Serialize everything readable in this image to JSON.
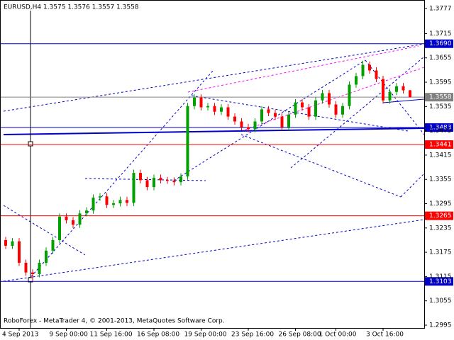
{
  "chart_data": {
    "type": "candlestick",
    "title": "EURUSD,H4  1.3575 1.3576 1.3557 1.3558",
    "footnote": "RoboForex - MetaTrader 4, © 2001-2013, MetaQuotes Software Corp.",
    "categories": [
      null,
      null,
      "4 Sep 2013",
      null,
      null,
      null,
      null,
      null,
      null,
      "9 Sep 00:00",
      null,
      null,
      null,
      null,
      null,
      "11 Sep 16:00",
      null,
      null,
      null,
      null,
      null,
      null,
      "16 Sep 08:00",
      null,
      null,
      null,
      null,
      null,
      null,
      "19 Sep 00:00",
      null,
      null,
      null,
      null,
      null,
      null,
      "23 Sep 16:00",
      null,
      null,
      null,
      null,
      null,
      null,
      "26 Sep 08:00",
      null,
      null,
      null,
      null,
      null,
      "1 Oct 00:00",
      null,
      null,
      null,
      null,
      null,
      null,
      "3 Oct 16:00",
      null,
      null,
      null,
      null
    ],
    "open": [
      1.3205,
      1.3191,
      1.3202,
      1.3149,
      1.3125,
      1.3121,
      1.3149,
      1.3179,
      1.3205,
      1.3263,
      1.3254,
      1.3243,
      1.3271,
      1.3278,
      1.331,
      1.3313,
      1.3292,
      1.3296,
      1.3304,
      1.3297,
      1.3371,
      1.3353,
      1.3336,
      1.3359,
      1.3353,
      1.3352,
      1.3348,
      1.3362,
      1.3536,
      1.3557,
      1.3533,
      1.3536,
      1.3522,
      1.3533,
      1.351,
      1.3498,
      1.3484,
      1.3479,
      1.3498,
      1.3528,
      1.3519,
      1.351,
      1.3484,
      1.3515,
      1.3545,
      1.3533,
      1.351,
      1.355,
      1.3568,
      1.354,
      1.3515,
      1.3536,
      1.3589,
      1.361,
      1.3638,
      1.3624,
      1.3603,
      1.355,
      1.3571,
      1.3585,
      1.3575
    ],
    "high": [
      1.3213,
      1.321,
      1.321,
      1.3157,
      1.3133,
      1.3157,
      1.3187,
      1.3213,
      1.3271,
      1.3271,
      1.3262,
      1.3279,
      1.3286,
      1.3318,
      1.3321,
      1.3321,
      1.3304,
      1.3312,
      1.3312,
      1.3379,
      1.3379,
      1.3361,
      1.3367,
      1.3367,
      1.3361,
      1.336,
      1.337,
      1.3544,
      1.3565,
      1.3565,
      1.3544,
      1.3544,
      1.3541,
      1.3541,
      1.3518,
      1.3506,
      1.3492,
      1.3506,
      1.3536,
      1.3536,
      1.3527,
      1.3518,
      1.3523,
      1.3553,
      1.3553,
      1.3541,
      1.3558,
      1.3576,
      1.3576,
      1.3548,
      1.3544,
      1.3597,
      1.3618,
      1.3648,
      1.3646,
      1.3632,
      1.3611,
      1.3579,
      1.3593,
      1.3593,
      1.3576
    ],
    "low": [
      1.3183,
      1.3183,
      1.3141,
      1.3117,
      1.3104,
      1.3113,
      1.3141,
      1.3171,
      1.3197,
      1.3246,
      1.3235,
      1.3235,
      1.3263,
      1.327,
      1.3302,
      1.3284,
      1.3284,
      1.3288,
      1.3289,
      1.3289,
      1.3345,
      1.3328,
      1.3328,
      1.3345,
      1.3344,
      1.334,
      1.334,
      1.3354,
      1.3528,
      1.3525,
      1.3525,
      1.3514,
      1.3514,
      1.3502,
      1.349,
      1.3476,
      1.3471,
      1.3471,
      1.349,
      1.3511,
      1.3502,
      1.3476,
      1.3476,
      1.3507,
      1.3525,
      1.3502,
      1.3502,
      1.3542,
      1.3532,
      1.3507,
      1.3507,
      1.3528,
      1.3581,
      1.3602,
      1.3616,
      1.3595,
      1.3542,
      1.3542,
      1.3563,
      1.3567,
      1.3557
    ],
    "close": [
      1.3191,
      1.3202,
      1.3149,
      1.3125,
      1.3121,
      1.3149,
      1.3179,
      1.3205,
      1.3263,
      1.3254,
      1.3243,
      1.3271,
      1.3278,
      1.331,
      1.3313,
      1.3292,
      1.3296,
      1.3304,
      1.3297,
      1.3371,
      1.3353,
      1.3336,
      1.3359,
      1.3353,
      1.3352,
      1.3348,
      1.3362,
      1.3536,
      1.3557,
      1.3533,
      1.3536,
      1.3522,
      1.3533,
      1.351,
      1.3498,
      1.3484,
      1.3479,
      1.3498,
      1.3528,
      1.3519,
      1.351,
      1.3484,
      1.3515,
      1.3545,
      1.3533,
      1.351,
      1.355,
      1.3568,
      1.354,
      1.3515,
      1.3536,
      1.3589,
      1.361,
      1.3638,
      1.3624,
      1.3603,
      1.355,
      1.3571,
      1.3585,
      1.3575,
      1.3558
    ],
    "up_color": "#00a000",
    "down_color": "#ff0000",
    "ylim": [
      1.2988,
      1.3798
    ],
    "yticks": [
      1.3777,
      1.3715,
      1.3655,
      1.3595,
      1.3535,
      1.3475,
      1.3415,
      1.3355,
      1.3295,
      1.3235,
      1.3175,
      1.3115,
      1.3055,
      1.2995
    ],
    "levels": [
      {
        "value": 1.369,
        "label": "1.3690",
        "color": "#0000c8"
      },
      {
        "value": 1.3558,
        "label": "1.3558",
        "color": "#808080"
      },
      {
        "value": 1.3483,
        "label": "1.3483",
        "color": "#0000c8"
      },
      {
        "value": 1.3441,
        "label": "1.3441",
        "color": "#ff0000"
      },
      {
        "value": 1.3265,
        "label": "1.3265",
        "color": "#ff0000"
      },
      {
        "value": 1.3103,
        "label": "1.3103",
        "color": "#0000c8"
      }
    ]
  }
}
